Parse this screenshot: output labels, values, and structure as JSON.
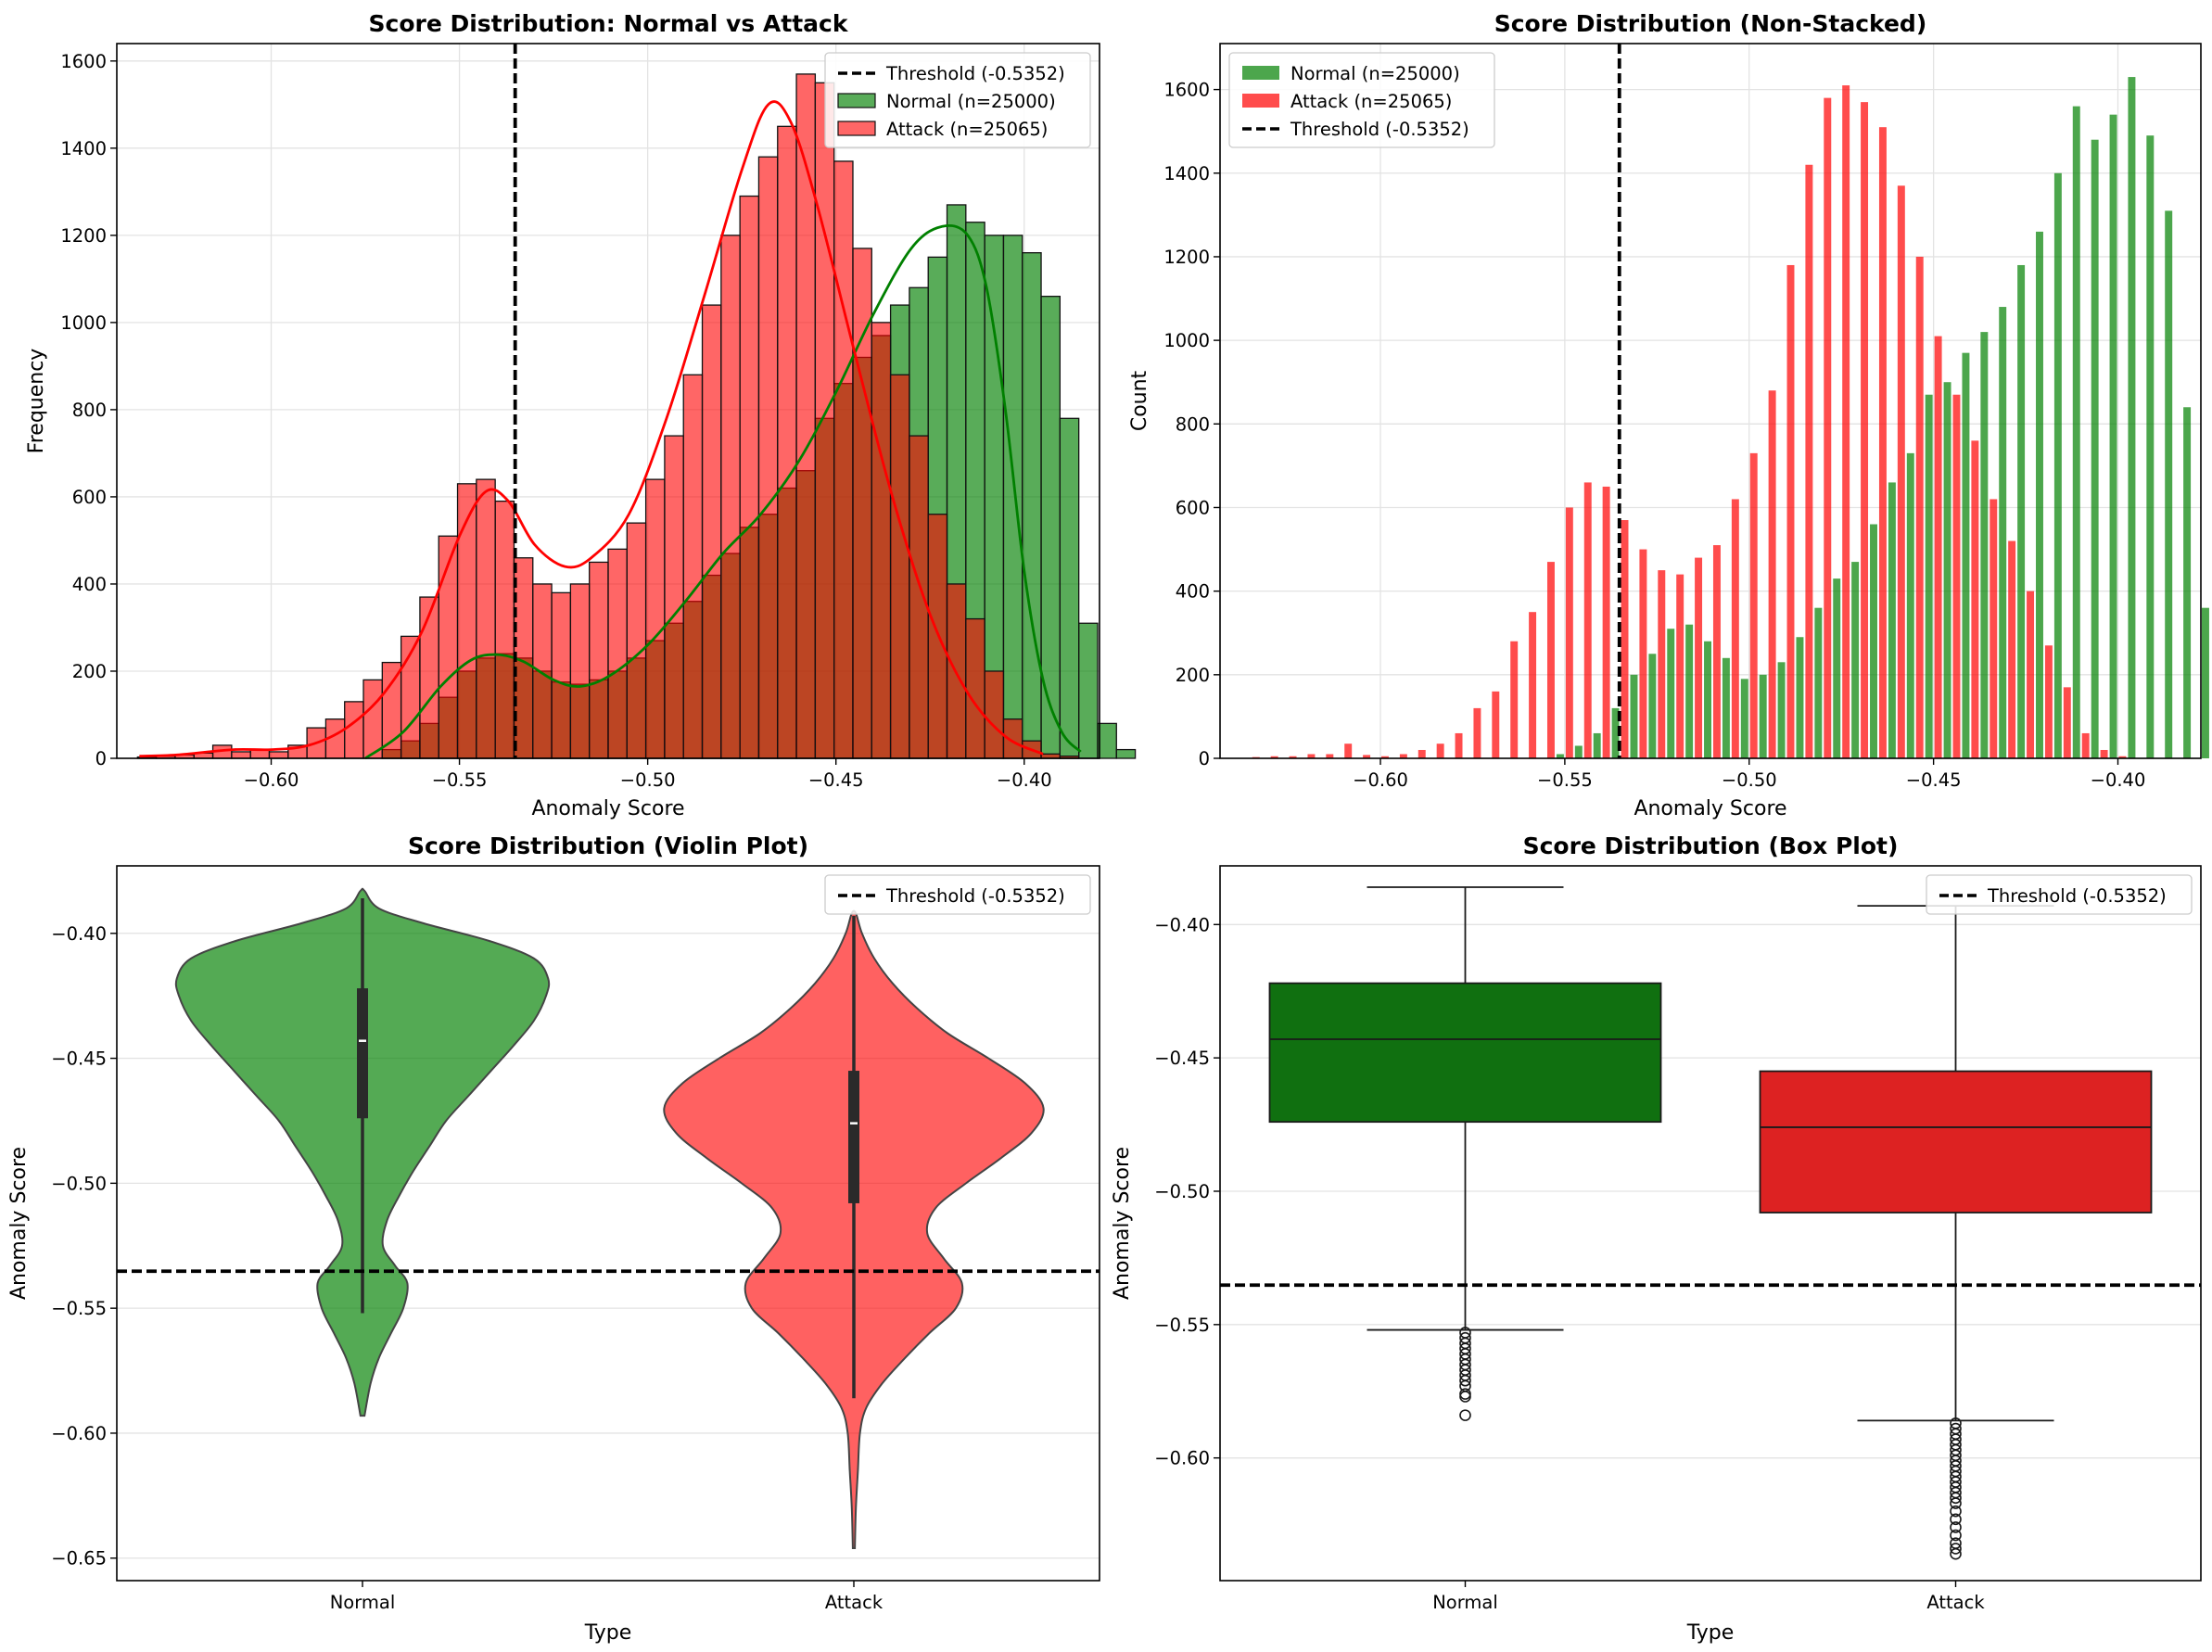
{
  "colors": {
    "normal": "#008000",
    "attack": "#ff0000",
    "normal_box": "#107010",
    "attack_box": "#dd2222",
    "threshold": "#000000"
  },
  "chart_data": [
    {
      "type": "histogram",
      "title": "Score Distribution: Normal vs Attack",
      "xlabel": "Anomaly Score",
      "ylabel": "Frequency",
      "xlim": [
        -0.641,
        -0.38
      ],
      "ylim": [
        0,
        1640
      ],
      "xticks": [
        -0.6,
        -0.55,
        -0.5,
        -0.45,
        -0.4
      ],
      "xtick_labels": [
        "−0.60",
        "−0.55",
        "−0.50",
        "−0.45",
        "−0.40"
      ],
      "yticks": [
        0,
        200,
        400,
        600,
        800,
        1000,
        1200,
        1400,
        1600
      ],
      "ytick_labels": [
        "0",
        "200",
        "400",
        "600",
        "800",
        "1000",
        "1200",
        "1400",
        "1600"
      ],
      "grid": true,
      "legend_position": "top-right",
      "threshold": {
        "value": -0.5352,
        "label": "Threshold (-0.5352)"
      },
      "bin_edges_start": -0.6355,
      "bin_width": 0.005,
      "series": [
        {
          "name": "Normal (n=25000)",
          "counts": [
            0,
            0,
            0,
            0,
            0,
            0,
            0,
            0,
            0,
            0,
            0,
            0,
            0,
            20,
            40,
            80,
            140,
            200,
            230,
            240,
            230,
            200,
            175,
            170,
            180,
            200,
            230,
            270,
            310,
            360,
            420,
            470,
            530,
            560,
            620,
            660,
            780,
            860,
            920,
            970,
            1040,
            1080,
            1150,
            1270,
            1230,
            1200,
            1200,
            1160,
            1060,
            780,
            310,
            80,
            20,
            0
          ],
          "kde": [
            [
              -0.575,
              0
            ],
            [
              -0.565,
              60
            ],
            [
              -0.555,
              165
            ],
            [
              -0.547,
              225
            ],
            [
              -0.54,
              238
            ],
            [
              -0.533,
              222
            ],
            [
              -0.525,
              180
            ],
            [
              -0.518,
              165
            ],
            [
              -0.51,
              190
            ],
            [
              -0.5,
              260
            ],
            [
              -0.49,
              360
            ],
            [
              -0.48,
              470
            ],
            [
              -0.47,
              560
            ],
            [
              -0.46,
              680
            ],
            [
              -0.45,
              840
            ],
            [
              -0.44,
              1020
            ],
            [
              -0.43,
              1170
            ],
            [
              -0.422,
              1220
            ],
            [
              -0.415,
              1200
            ],
            [
              -0.41,
              1080
            ],
            [
              -0.405,
              800
            ],
            [
              -0.4,
              430
            ],
            [
              -0.395,
              180
            ],
            [
              -0.39,
              60
            ],
            [
              -0.385,
              15
            ]
          ]
        },
        {
          "name": "Attack (n=25065)",
          "counts": [
            3,
            5,
            8,
            12,
            30,
            15,
            20,
            15,
            30,
            70,
            90,
            130,
            180,
            220,
            280,
            370,
            510,
            630,
            640,
            590,
            460,
            400,
            380,
            400,
            450,
            480,
            540,
            640,
            740,
            880,
            1040,
            1200,
            1290,
            1380,
            1450,
            1570,
            1550,
            1370,
            1170,
            1000,
            880,
            740,
            560,
            400,
            320,
            200,
            90,
            40,
            10,
            5,
            0,
            0,
            0,
            0
          ],
          "kde": [
            [
              -0.635,
              5
            ],
            [
              -0.625,
              8
            ],
            [
              -0.61,
              20
            ],
            [
              -0.6,
              20
            ],
            [
              -0.59,
              30
            ],
            [
              -0.58,
              70
            ],
            [
              -0.57,
              150
            ],
            [
              -0.56,
              290
            ],
            [
              -0.55,
              510
            ],
            [
              -0.543,
              612
            ],
            [
              -0.537,
              590
            ],
            [
              -0.53,
              490
            ],
            [
              -0.522,
              440
            ],
            [
              -0.515,
              460
            ],
            [
              -0.505,
              560
            ],
            [
              -0.495,
              780
            ],
            [
              -0.485,
              1060
            ],
            [
              -0.475,
              1350
            ],
            [
              -0.468,
              1500
            ],
            [
              -0.462,
              1460
            ],
            [
              -0.455,
              1270
            ],
            [
              -0.445,
              930
            ],
            [
              -0.435,
              600
            ],
            [
              -0.425,
              330
            ],
            [
              -0.415,
              150
            ],
            [
              -0.405,
              50
            ],
            [
              -0.395,
              10
            ]
          ]
        }
      ]
    },
    {
      "type": "bar",
      "title": "Score Distribution (Non-Stacked)",
      "xlabel": "Anomaly Score",
      "ylabel": "Count",
      "xlim": [
        -0.6435,
        -0.3775
      ],
      "ylim": [
        0,
        1710
      ],
      "xticks": [
        -0.6,
        -0.55,
        -0.5,
        -0.45,
        -0.4
      ],
      "xtick_labels": [
        "−0.60",
        "−0.55",
        "−0.50",
        "−0.45",
        "−0.40"
      ],
      "yticks": [
        0,
        200,
        400,
        600,
        800,
        1000,
        1200,
        1400,
        1600
      ],
      "ytick_labels": [
        "0",
        "200",
        "400",
        "600",
        "800",
        "1000",
        "1200",
        "1400",
        "1600"
      ],
      "grid": true,
      "legend_position": "top-left",
      "threshold": {
        "value": -0.5352,
        "label": "Threshold (-0.5352)"
      },
      "bin_centers_start": -0.6325,
      "bin_width": 0.005,
      "series": [
        {
          "name": "Normal (n=25000)",
          "values": [
            0,
            0,
            0,
            0,
            0,
            0,
            0,
            0,
            0,
            0,
            0,
            0,
            0,
            0,
            0,
            0,
            10,
            30,
            60,
            120,
            200,
            250,
            310,
            320,
            280,
            240,
            190,
            200,
            230,
            290,
            360,
            430,
            470,
            560,
            660,
            730,
            870,
            900,
            970,
            1020,
            1080,
            1180,
            1260,
            1400,
            1560,
            1480,
            1540,
            1630,
            1490,
            1310,
            840,
            360,
            110,
            20
          ]
        },
        {
          "name": "Attack (n=25065)",
          "values": [
            3,
            5,
            5,
            10,
            10,
            35,
            8,
            5,
            10,
            20,
            35,
            60,
            120,
            160,
            280,
            350,
            470,
            600,
            660,
            650,
            570,
            500,
            450,
            440,
            480,
            510,
            620,
            730,
            880,
            1180,
            1420,
            1580,
            1610,
            1570,
            1510,
            1370,
            1200,
            1010,
            870,
            760,
            620,
            520,
            400,
            270,
            170,
            60,
            20,
            5,
            0,
            0,
            0,
            0,
            0,
            0
          ]
        }
      ]
    },
    {
      "type": "violin",
      "title": "Score Distribution (Violin Plot)",
      "xlabel": "Type",
      "ylabel": "Anomaly Score",
      "ylim": [
        -0.659,
        -0.373
      ],
      "categories": [
        "Normal",
        "Attack"
      ],
      "yticks": [
        -0.4,
        -0.45,
        -0.5,
        -0.55,
        -0.6,
        -0.65
      ],
      "ytick_labels": [
        "−0.40",
        "−0.45",
        "−0.50",
        "−0.55",
        "−0.60",
        "−0.65"
      ],
      "grid": true,
      "legend_position": "top-right",
      "threshold": {
        "value": -0.5352,
        "label": "Threshold (-0.5352)"
      },
      "series": [
        {
          "name": "Normal",
          "median": -0.443,
          "q1": -0.474,
          "q3": -0.422,
          "whisker_low": -0.552,
          "whisker_high": -0.386,
          "profile": [
            [
              -0.593,
              0.01
            ],
            [
              -0.58,
              0.04
            ],
            [
              -0.57,
              0.08
            ],
            [
              -0.56,
              0.14
            ],
            [
              -0.55,
              0.2
            ],
            [
              -0.54,
              0.22
            ],
            [
              -0.533,
              0.16
            ],
            [
              -0.525,
              0.1
            ],
            [
              -0.515,
              0.12
            ],
            [
              -0.505,
              0.18
            ],
            [
              -0.495,
              0.25
            ],
            [
              -0.485,
              0.33
            ],
            [
              -0.475,
              0.41
            ],
            [
              -0.465,
              0.52
            ],
            [
              -0.455,
              0.63
            ],
            [
              -0.445,
              0.74
            ],
            [
              -0.435,
              0.84
            ],
            [
              -0.425,
              0.9
            ],
            [
              -0.418,
              0.91
            ],
            [
              -0.41,
              0.84
            ],
            [
              -0.403,
              0.62
            ],
            [
              -0.396,
              0.3
            ],
            [
              -0.39,
              0.08
            ],
            [
              -0.383,
              0.01
            ]
          ]
        },
        {
          "name": "Attack",
          "median": -0.476,
          "q1": -0.508,
          "q3": -0.455,
          "whisker_low": -0.586,
          "whisker_high": -0.393,
          "profile": [
            [
              -0.646,
              0.005
            ],
            [
              -0.63,
              0.01
            ],
            [
              -0.615,
              0.02
            ],
            [
              -0.6,
              0.03
            ],
            [
              -0.59,
              0.06
            ],
            [
              -0.58,
              0.14
            ],
            [
              -0.57,
              0.25
            ],
            [
              -0.56,
              0.37
            ],
            [
              -0.55,
              0.5
            ],
            [
              -0.54,
              0.53
            ],
            [
              -0.53,
              0.44
            ],
            [
              -0.52,
              0.36
            ],
            [
              -0.51,
              0.4
            ],
            [
              -0.5,
              0.55
            ],
            [
              -0.49,
              0.72
            ],
            [
              -0.48,
              0.87
            ],
            [
              -0.47,
              0.93
            ],
            [
              -0.46,
              0.84
            ],
            [
              -0.45,
              0.66
            ],
            [
              -0.44,
              0.46
            ],
            [
              -0.43,
              0.31
            ],
            [
              -0.42,
              0.19
            ],
            [
              -0.41,
              0.1
            ],
            [
              -0.4,
              0.04
            ],
            [
              -0.392,
              0.01
            ]
          ]
        }
      ]
    },
    {
      "type": "box",
      "title": "Score Distribution (Box Plot)",
      "xlabel": "Type",
      "ylabel": "Anomaly Score",
      "ylim": [
        -0.646,
        -0.378
      ],
      "categories": [
        "Normal",
        "Attack"
      ],
      "yticks": [
        -0.4,
        -0.45,
        -0.5,
        -0.55,
        -0.6
      ],
      "ytick_labels": [
        "−0.40",
        "−0.45",
        "−0.50",
        "−0.55",
        "−0.60"
      ],
      "grid": true,
      "legend_position": "top-right",
      "threshold": {
        "value": -0.5352,
        "label": "Threshold (-0.5352)"
      },
      "series": [
        {
          "name": "Normal",
          "median": -0.443,
          "q1": -0.474,
          "q3": -0.422,
          "whisker_low": -0.552,
          "whisker_high": -0.386,
          "outliers": [
            -0.553,
            -0.555,
            -0.557,
            -0.559,
            -0.561,
            -0.563,
            -0.565,
            -0.567,
            -0.569,
            -0.571,
            -0.573,
            -0.576,
            -0.577,
            -0.584
          ]
        },
        {
          "name": "Attack",
          "median": -0.476,
          "q1": -0.508,
          "q3": -0.455,
          "whisker_low": -0.586,
          "whisker_high": -0.393,
          "outliers": [
            -0.587,
            -0.589,
            -0.591,
            -0.593,
            -0.595,
            -0.597,
            -0.599,
            -0.601,
            -0.603,
            -0.605,
            -0.607,
            -0.609,
            -0.611,
            -0.613,
            -0.615,
            -0.617,
            -0.62,
            -0.623,
            -0.626,
            -0.629,
            -0.632,
            -0.634,
            -0.636
          ]
        }
      ]
    }
  ]
}
